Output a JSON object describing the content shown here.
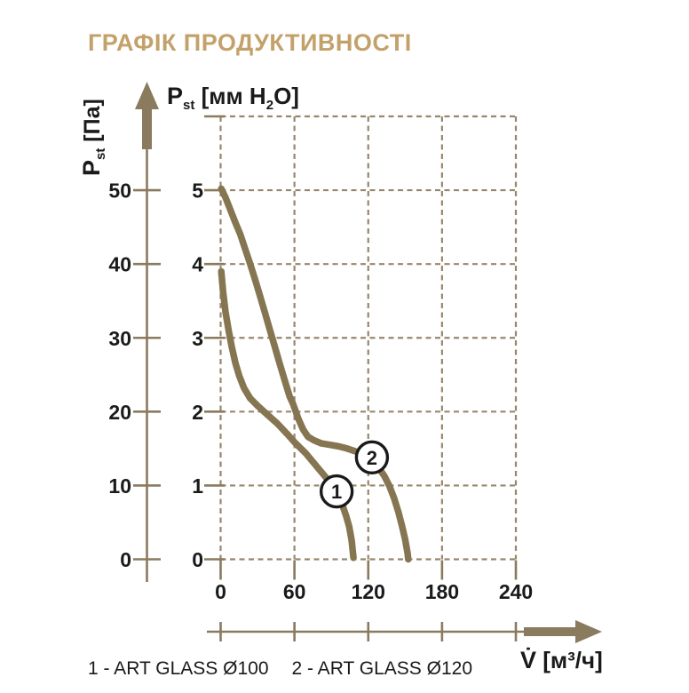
{
  "title": "ГРАФІК ПРОДУКТИВНОСТІ",
  "colors": {
    "title": "#C3A16A",
    "curve": "#857550",
    "grid": "#97876D",
    "axis": "#8A7A5E",
    "text": "#1A1A1A"
  },
  "axis_labels": {
    "left": {
      "symbol": "P",
      "subscript": "st",
      "unit": " [Па]"
    },
    "inner_top": {
      "symbol": "P",
      "subscript": "st",
      "unit_prefix": " [мм H",
      "unit_sub": "2",
      "unit_suffix": "O]"
    },
    "flow": {
      "symbol": "V̇",
      "unit": " [м³/ч]"
    }
  },
  "legend": {
    "items": [
      {
        "text": "1 - ART GLASS Ø100"
      },
      {
        "text": "2 - ART GLASS Ø120"
      }
    ]
  },
  "chart_data": {
    "type": "line",
    "title": "ГРАФІК ПРОДУКТИВНОСТІ",
    "xlabel": "V̇ [м³/ч]",
    "ylabel_outer": "Pst [Па]",
    "ylabel_inner": "Pst [мм H2O]",
    "grid": "dashed",
    "x_axis": {
      "ticks": [
        0,
        60,
        120,
        180,
        240
      ],
      "range": [
        0,
        240
      ]
    },
    "y_axis_outer": {
      "ticks": [
        0,
        10,
        20,
        30,
        40,
        50
      ],
      "range": [
        0,
        60
      ]
    },
    "y_axis_inner": {
      "ticks": [
        0,
        1,
        2,
        3,
        4,
        5
      ],
      "range": [
        0,
        6
      ]
    },
    "series": [
      {
        "name": "ART GLASS Ø100",
        "marker": "1",
        "marker_at": [
          94.3,
          0.92
        ],
        "points": [
          [
            0.5,
            3.9
          ],
          [
            2,
            3.62
          ],
          [
            4,
            3.35
          ],
          [
            6.5,
            3.1
          ],
          [
            9,
            2.88
          ],
          [
            12,
            2.66
          ],
          [
            15,
            2.49
          ],
          [
            19,
            2.32
          ],
          [
            24,
            2.18
          ],
          [
            30,
            2.08
          ],
          [
            38,
            1.96
          ],
          [
            46,
            1.84
          ],
          [
            54,
            1.7
          ],
          [
            61,
            1.57
          ],
          [
            69,
            1.44
          ],
          [
            76,
            1.3
          ],
          [
            83,
            1.16
          ],
          [
            90,
            1.02
          ],
          [
            95,
            0.88
          ],
          [
            99,
            0.73
          ],
          [
            102,
            0.59
          ],
          [
            104.5,
            0.44
          ],
          [
            106.5,
            0.26
          ],
          [
            108,
            0.02
          ]
        ]
      },
      {
        "name": "ART GLASS Ø120",
        "marker": "2",
        "marker_at": [
          123,
          1.38
        ],
        "points": [
          [
            0.5,
            5.02
          ],
          [
            4,
            4.9
          ],
          [
            8,
            4.73
          ],
          [
            12,
            4.56
          ],
          [
            16,
            4.4
          ],
          [
            20,
            4.2
          ],
          [
            24,
            4.0
          ],
          [
            28,
            3.79
          ],
          [
            32,
            3.57
          ],
          [
            36,
            3.34
          ],
          [
            40,
            3.11
          ],
          [
            44,
            2.88
          ],
          [
            48,
            2.65
          ],
          [
            52,
            2.43
          ],
          [
            56,
            2.21
          ],
          [
            59,
            2.1
          ],
          [
            63,
            1.91
          ],
          [
            67,
            1.76
          ],
          [
            71,
            1.66
          ],
          [
            76,
            1.61
          ],
          [
            82,
            1.57
          ],
          [
            89,
            1.55
          ],
          [
            96,
            1.53
          ],
          [
            103,
            1.5
          ],
          [
            110,
            1.46
          ],
          [
            117,
            1.41
          ],
          [
            123,
            1.35
          ],
          [
            128,
            1.25
          ],
          [
            133,
            1.13
          ],
          [
            137,
            1.0
          ],
          [
            141,
            0.83
          ],
          [
            144.5,
            0.64
          ],
          [
            147.5,
            0.45
          ],
          [
            150,
            0.27
          ],
          [
            152,
            0.08
          ],
          [
            152.5,
            0.0
          ]
        ]
      }
    ]
  }
}
